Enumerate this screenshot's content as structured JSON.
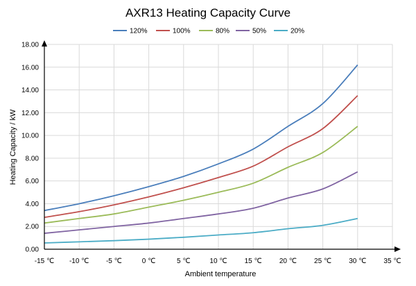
{
  "chart_data": {
    "type": "line",
    "title": "AXR13 Heating Capacity Curve",
    "xlabel": "Ambient temperature",
    "ylabel": "Heating Capacity / kW",
    "xlim": [
      -15,
      35
    ],
    "ylim": [
      0,
      18
    ],
    "x_ticks": [
      "-15 ℃",
      "-10 ℃",
      "-5 ℃",
      "0 ℃",
      "5 ℃",
      "10 ℃",
      "15 ℃",
      "20 ℃",
      "25 ℃",
      "30 ℃",
      "35 ℃"
    ],
    "y_ticks": [
      "0.00",
      "2.00",
      "4.00",
      "6.00",
      "8.00",
      "10.00",
      "12.00",
      "14.00",
      "16.00",
      "18.00"
    ],
    "grid": true,
    "legend_position": "top",
    "x": [
      -15,
      -10,
      -5,
      0,
      5,
      10,
      15,
      20,
      25,
      30
    ],
    "series": [
      {
        "name": "120%",
        "color": "#4a7ebb",
        "values": [
          3.4,
          4.0,
          4.7,
          5.5,
          6.4,
          7.5,
          8.8,
          10.8,
          12.8,
          16.2
        ]
      },
      {
        "name": "100%",
        "color": "#c0504d",
        "values": [
          2.8,
          3.3,
          3.9,
          4.6,
          5.4,
          6.3,
          7.3,
          9.0,
          10.6,
          13.5
        ]
      },
      {
        "name": "80%",
        "color": "#9bbb59",
        "values": [
          2.3,
          2.7,
          3.1,
          3.7,
          4.3,
          5.0,
          5.8,
          7.2,
          8.5,
          10.8
        ]
      },
      {
        "name": "50%",
        "color": "#8064a2",
        "values": [
          1.4,
          1.7,
          2.0,
          2.3,
          2.7,
          3.1,
          3.6,
          4.5,
          5.3,
          6.8
        ]
      },
      {
        "name": "20%",
        "color": "#4bacc6",
        "values": [
          0.55,
          0.65,
          0.75,
          0.88,
          1.05,
          1.25,
          1.45,
          1.8,
          2.1,
          2.7
        ]
      }
    ]
  }
}
